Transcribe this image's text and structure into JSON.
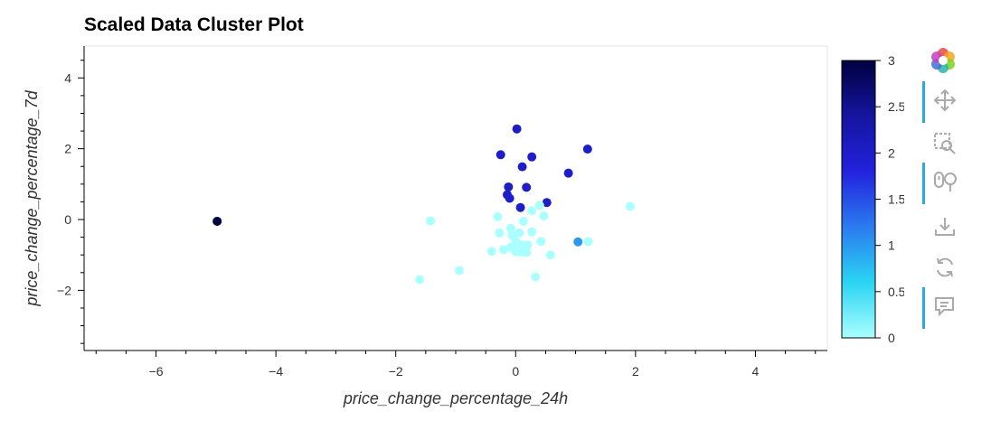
{
  "chart_data": {
    "type": "scatter",
    "title": "Scaled Data Cluster Plot",
    "xlabel": "price_change_percentage_24h",
    "ylabel": "price_change_percentage_7d",
    "xlim": [
      -7.2,
      5.2
    ],
    "ylim": [
      -3.7,
      4.9
    ],
    "x_ticks": [
      -6,
      -4,
      -2,
      0,
      2,
      4
    ],
    "y_ticks": [
      -2,
      0,
      2,
      4
    ],
    "grid": false,
    "colorbar": {
      "min": 0,
      "max": 3,
      "ticks": [
        0,
        0.5,
        1,
        1.5,
        2,
        2.5,
        3
      ],
      "tick_labels": [
        "0",
        "0.5",
        "1",
        "1.5",
        "2",
        "2.5",
        "3"
      ],
      "colors": [
        "#aaffff",
        "#2ad4f3",
        "#2b7bf0",
        "#2222dd",
        "#1515a0",
        "#000040"
      ]
    },
    "points": [
      {
        "x": -4.98,
        "y": -0.05,
        "c": 3
      },
      {
        "x": 1.04,
        "y": -0.63,
        "c": 1
      },
      {
        "x": 0.02,
        "y": 2.56,
        "c": 2
      },
      {
        "x": -0.25,
        "y": 1.83,
        "c": 2
      },
      {
        "x": 0.27,
        "y": 1.77,
        "c": 2
      },
      {
        "x": 0.11,
        "y": 1.49,
        "c": 2
      },
      {
        "x": 1.2,
        "y": 1.99,
        "c": 2
      },
      {
        "x": 0.88,
        "y": 1.31,
        "c": 2
      },
      {
        "x": -0.12,
        "y": 0.92,
        "c": 2
      },
      {
        "x": 0.18,
        "y": 0.91,
        "c": 2
      },
      {
        "x": -0.14,
        "y": 0.7,
        "c": 2
      },
      {
        "x": -0.1,
        "y": 0.6,
        "c": 2
      },
      {
        "x": 0.52,
        "y": 0.48,
        "c": 2
      },
      {
        "x": 0.08,
        "y": 0.34,
        "c": 2
      },
      {
        "x": 1.91,
        "y": 0.37,
        "c": 0
      },
      {
        "x": -1.42,
        "y": -0.04,
        "c": 0
      },
      {
        "x": -0.3,
        "y": 0.08,
        "c": 0
      },
      {
        "x": 0.4,
        "y": 0.4,
        "c": 0
      },
      {
        "x": 0.27,
        "y": 0.25,
        "c": 0
      },
      {
        "x": 0.47,
        "y": 0.1,
        "c": 0
      },
      {
        "x": 0.13,
        "y": -0.05,
        "c": 0
      },
      {
        "x": -0.08,
        "y": -0.25,
        "c": 0
      },
      {
        "x": -0.27,
        "y": -0.38,
        "c": 0
      },
      {
        "x": 0.06,
        "y": -0.38,
        "c": 0
      },
      {
        "x": 0.27,
        "y": -0.35,
        "c": 0
      },
      {
        "x": -0.06,
        "y": -0.45,
        "c": 0
      },
      {
        "x": 0.42,
        "y": -0.62,
        "c": 0
      },
      {
        "x": 1.21,
        "y": -0.62,
        "c": 0
      },
      {
        "x": 0.0,
        "y": -0.62,
        "c": 0
      },
      {
        "x": 0.1,
        "y": -0.72,
        "c": 0
      },
      {
        "x": 0.2,
        "y": -0.72,
        "c": 0
      },
      {
        "x": -0.08,
        "y": -0.78,
        "c": 0
      },
      {
        "x": 0.05,
        "y": -0.8,
        "c": 0
      },
      {
        "x": 0.15,
        "y": -0.84,
        "c": 0
      },
      {
        "x": -0.2,
        "y": -0.85,
        "c": 0
      },
      {
        "x": -0.4,
        "y": -0.9,
        "c": 0
      },
      {
        "x": 0.0,
        "y": -0.9,
        "c": 0
      },
      {
        "x": 0.08,
        "y": -0.92,
        "c": 0
      },
      {
        "x": 0.18,
        "y": -0.93,
        "c": 0
      },
      {
        "x": 0.58,
        "y": -1.0,
        "c": 0
      },
      {
        "x": -0.94,
        "y": -1.44,
        "c": 0
      },
      {
        "x": 0.33,
        "y": -1.62,
        "c": 0
      },
      {
        "x": -1.6,
        "y": -1.7,
        "c": 0
      }
    ]
  },
  "toolbar": {
    "tools": [
      {
        "name": "bokeh-logo-icon",
        "active": false
      },
      {
        "name": "pan-icon",
        "active": true
      },
      {
        "name": "box-zoom-icon",
        "active": false
      },
      {
        "name": "wheel-zoom-icon",
        "active": true
      },
      {
        "name": "save-icon",
        "active": false
      },
      {
        "name": "reset-icon",
        "active": false
      },
      {
        "name": "hover-icon",
        "active": true
      }
    ]
  }
}
